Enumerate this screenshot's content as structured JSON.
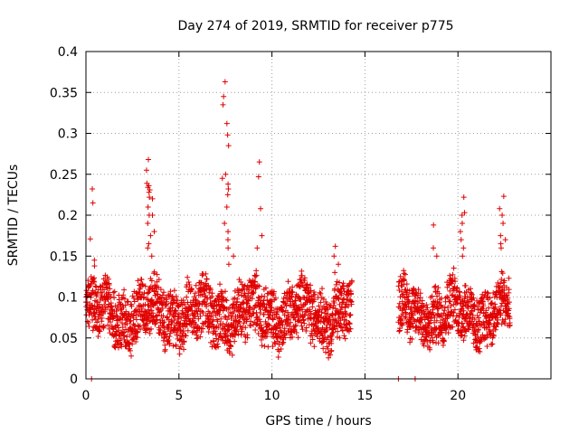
{
  "chart_data": {
    "type": "scatter",
    "title": "Day 274 of 2019, SRMTID for receiver p775",
    "xlabel": "GPS time / hours",
    "ylabel": "SRMTID / TECUs",
    "xlim": [
      0,
      25
    ],
    "ylim": [
      0,
      0.4
    ],
    "grid": true,
    "marker": "+",
    "color": "#e00000",
    "xticks": [
      0,
      5,
      10,
      15,
      20
    ],
    "xtick_labels": [
      "0",
      "5",
      "10",
      "15",
      "20"
    ],
    "yticks": [
      0,
      0.05,
      0.1,
      0.15,
      0.2,
      0.25,
      0.3,
      0.35,
      0.4
    ],
    "ytick_labels": [
      "0",
      "0.05",
      "0.1",
      "0.15",
      "0.2",
      "0.25",
      "0.3",
      "0.35",
      "0.4"
    ],
    "baseline": {
      "segments": [
        {
          "t_start": 0.0,
          "t_end": 14.3,
          "mean": 0.08
        },
        {
          "t_start": 16.8,
          "t_end": 22.8,
          "mean": 0.08
        }
      ],
      "spread": 0.03,
      "sample_step_hours": 0.008
    },
    "peaks": [
      {
        "x": 0.3,
        "values": [
          0.232,
          0.215,
          0.171,
          0.145,
          0.138
        ]
      },
      {
        "x": 3.3,
        "values": [
          0.268,
          0.255,
          0.239,
          0.234,
          0.228,
          0.222,
          0.21,
          0.2,
          0.19,
          0.175,
          0.16
        ]
      },
      {
        "x": 3.5,
        "values": [
          0.236,
          0.231,
          0.22,
          0.2,
          0.18,
          0.165,
          0.15
        ]
      },
      {
        "x": 7.5,
        "values": [
          0.363,
          0.345,
          0.335,
          0.312,
          0.298,
          0.285,
          0.25,
          0.245,
          0.238,
          0.232,
          0.225,
          0.21,
          0.19
        ]
      },
      {
        "x": 7.8,
        "values": [
          0.18,
          0.17,
          0.16,
          0.15,
          0.14
        ]
      },
      {
        "x": 9.3,
        "values": [
          0.265,
          0.247,
          0.208,
          0.175,
          0.16
        ]
      },
      {
        "x": 13.4,
        "values": [
          0.162,
          0.15,
          0.14,
          0.13
        ]
      },
      {
        "x": 18.8,
        "values": [
          0.188,
          0.16,
          0.15
        ]
      },
      {
        "x": 20.2,
        "values": [
          0.222,
          0.203,
          0.2,
          0.19,
          0.18,
          0.17,
          0.16,
          0.15
        ]
      },
      {
        "x": 22.4,
        "values": [
          0.223,
          0.208,
          0.2,
          0.19,
          0.175,
          0.17,
          0.165,
          0.16
        ]
      }
    ],
    "zero_points": [
      0.3,
      16.8,
      17.7
    ]
  }
}
